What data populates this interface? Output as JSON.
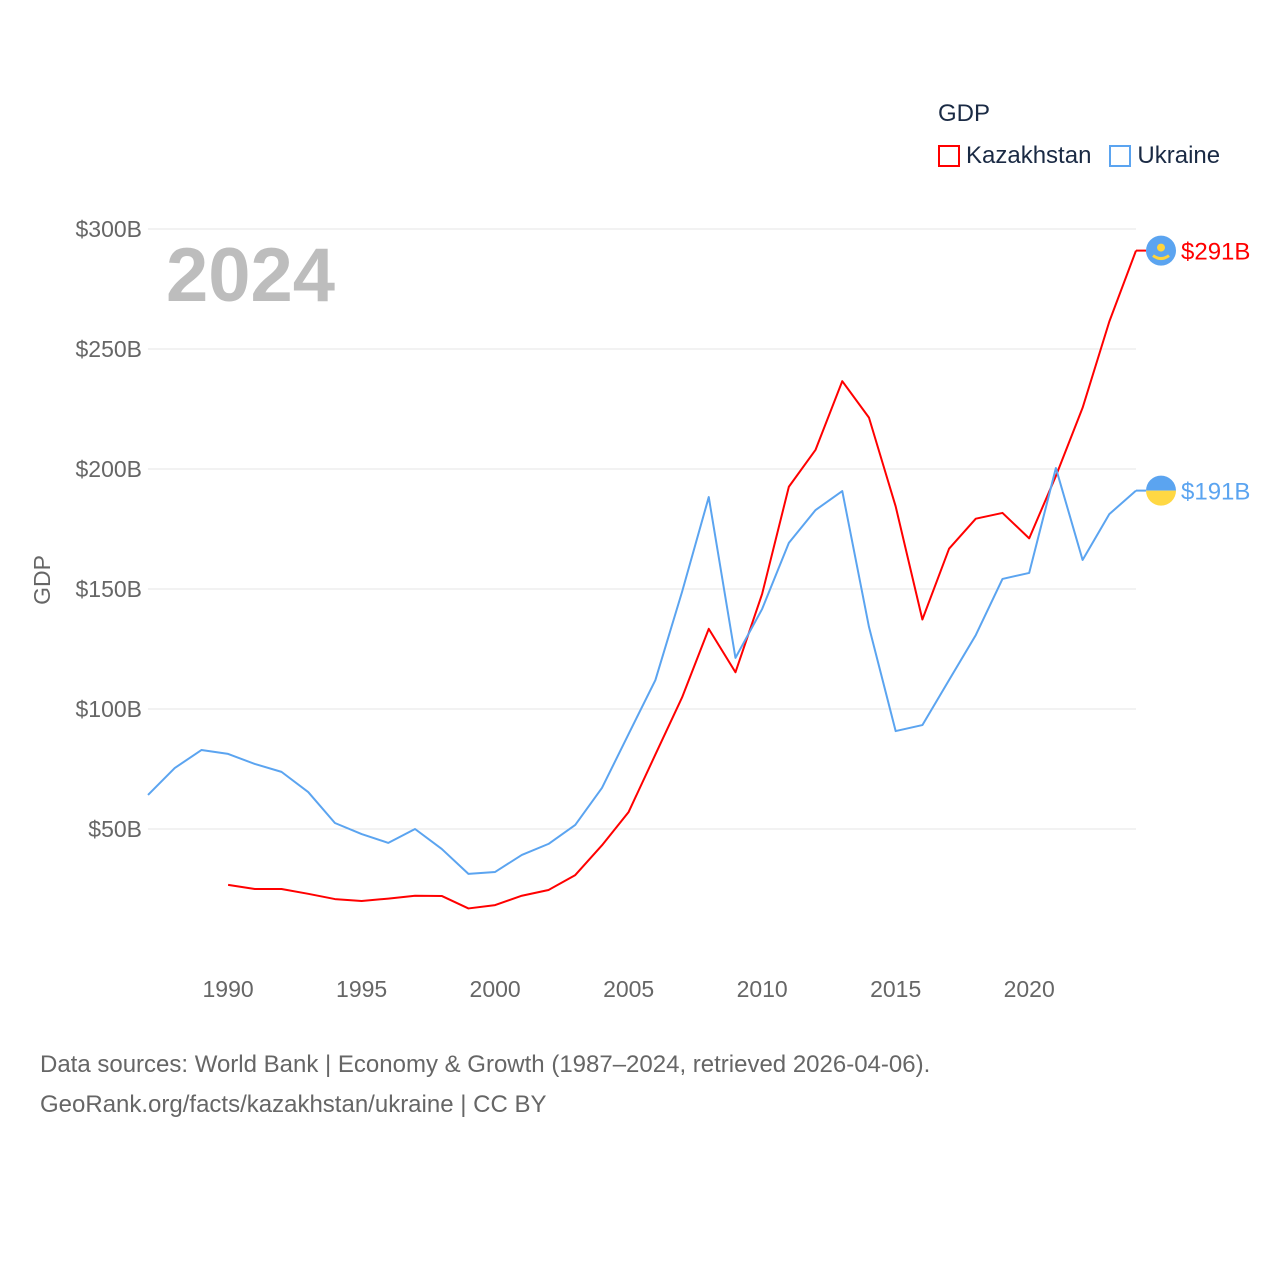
{
  "chart_data": {
    "type": "line",
    "title": "",
    "year_label": "2024",
    "xlabel": "",
    "ylabel": "GDP",
    "xlim": [
      1987,
      2024
    ],
    "ylim": [
      0,
      300
    ],
    "x_ticks": [
      1990,
      1995,
      2000,
      2005,
      2010,
      2015,
      2020
    ],
    "y_ticks": [
      50,
      100,
      150,
      200,
      250,
      300
    ],
    "y_tick_labels": [
      "$50B",
      "$100B",
      "$150B",
      "$200B",
      "$250B",
      "$300B"
    ],
    "grid": true,
    "legend_title": "GDP",
    "legend_position": "top-right",
    "series": [
      {
        "name": "Kazakhstan",
        "color": "#ff0000",
        "end_label": "$291B",
        "flag": "kazakhstan-flag",
        "x": [
          1990,
          1991,
          1992,
          1993,
          1994,
          1995,
          1996,
          1997,
          1998,
          1999,
          2000,
          2001,
          2002,
          2003,
          2004,
          2005,
          2006,
          2007,
          2008,
          2009,
          2010,
          2011,
          2012,
          2013,
          2014,
          2015,
          2016,
          2017,
          2018,
          2019,
          2020,
          2021,
          2022,
          2023,
          2024
        ],
        "values": [
          26.7,
          25,
          25,
          23,
          20.8,
          20,
          21,
          22.2,
          22.1,
          16.9,
          18.3,
          22.2,
          24.6,
          30.8,
          43.2,
          57.1,
          81,
          104.8,
          133.4,
          115.3,
          148,
          192.6,
          208,
          236.6,
          221.4,
          184.4,
          137.3,
          166.8,
          179.3,
          181.7,
          171.1,
          197.1,
          225.5,
          261.4,
          291
        ]
      },
      {
        "name": "Ukraine",
        "color": "#5ba4f0",
        "end_label": "$191B",
        "flag": "ukraine-flag",
        "x": [
          1987,
          1988,
          1989,
          1990,
          1991,
          1992,
          1993,
          1994,
          1995,
          1996,
          1997,
          1998,
          1999,
          2000,
          2001,
          2002,
          2003,
          2004,
          2005,
          2006,
          2007,
          2008,
          2009,
          2010,
          2011,
          2012,
          2013,
          2014,
          2015,
          2016,
          2017,
          2018,
          2019,
          2020,
          2021,
          2022,
          2023,
          2024
        ],
        "values": [
          64.2,
          75.4,
          82.9,
          81.3,
          77.1,
          73.8,
          65.4,
          52.5,
          47.9,
          44.2,
          50,
          41.7,
          31.3,
          32.1,
          39.2,
          43.8,
          51.7,
          67.1,
          89.6,
          112,
          148.8,
          188.3,
          121.3,
          141.7,
          169.2,
          182.9,
          190.8,
          134.2,
          90.8,
          93.3,
          112.1,
          130.8,
          154.2,
          156.7,
          200.4,
          162.1,
          181.2,
          191
        ]
      }
    ]
  },
  "footer": {
    "line1": "Data sources: World Bank | Economy & Growth (1987–2024, retrieved 2026-04-06).",
    "line2": "GeoRank.org/facts/kazakhstan/ukraine | CC BY"
  }
}
